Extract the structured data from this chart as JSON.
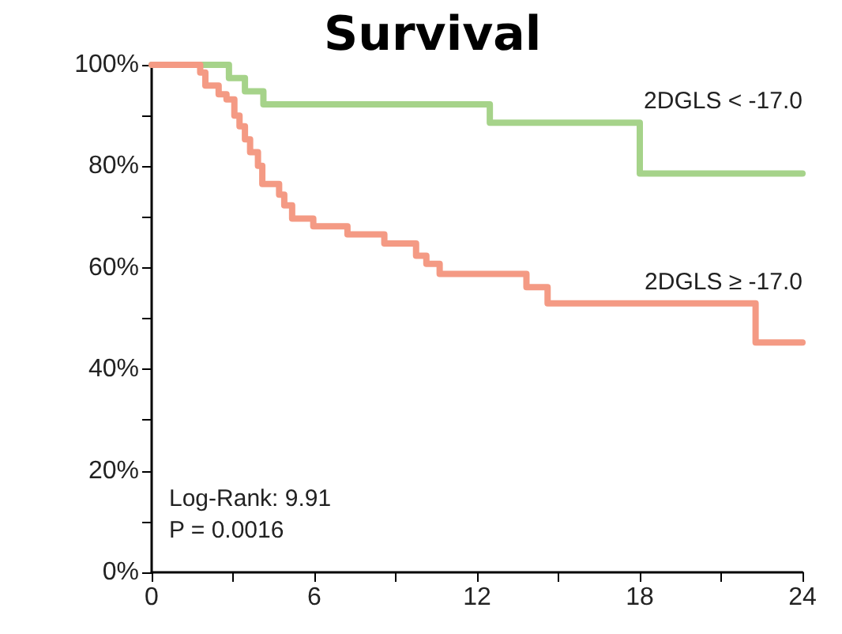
{
  "chart_data": {
    "type": "step",
    "title": "Survival",
    "xlim": [
      0,
      24
    ],
    "xticks": [
      0,
      {
        "value": 3,
        "label": null
      },
      6,
      {
        "value": 9,
        "label": null
      },
      12,
      {
        "value": 15,
        "label": null
      },
      18,
      {
        "value": 21,
        "label": null
      },
      24
    ],
    "ylim": [
      0,
      100
    ],
    "yticks": [
      {
        "value": 0,
        "label": "0%"
      },
      {
        "value": 10,
        "label": null
      },
      {
        "value": 20,
        "label": "20%"
      },
      {
        "value": 30,
        "label": null
      },
      {
        "value": 40,
        "label": "40%"
      },
      {
        "value": 50,
        "label": null
      },
      {
        "value": 60,
        "label": "60%"
      },
      {
        "value": 70,
        "label": null
      },
      {
        "value": 80,
        "label": "80%"
      },
      {
        "value": 90,
        "label": null
      },
      {
        "value": 100,
        "label": "100%"
      }
    ],
    "grid": false,
    "legend": false,
    "marker": "none",
    "line_style": "solid",
    "annotations": [
      "Log-Rank: 9.91",
      "P = 0.0016"
    ],
    "series": [
      {
        "name": "2DGLS < -17.0",
        "color": "#a6d38a",
        "x": [
          0,
          2.85,
          3.44,
          4.12,
          12.47,
          18.0,
          24
        ],
        "values": [
          100,
          97.4,
          94.8,
          92.2,
          88.6,
          78.6,
          78.6
        ]
      },
      {
        "name": "2DGLS ≥ -17.0",
        "color": "#f49a84",
        "x": [
          0,
          1.79,
          1.98,
          2.47,
          2.76,
          3.05,
          3.24,
          3.44,
          3.63,
          3.92,
          4.08,
          4.7,
          4.89,
          5.18,
          5.96,
          7.22,
          8.58,
          9.75,
          10.13,
          10.62,
          13.82,
          14.6,
          22.27,
          24
        ],
        "values": [
          100,
          98.5,
          95.9,
          94.2,
          93.2,
          90,
          87.9,
          85.3,
          82.8,
          80.1,
          76.5,
          74.4,
          72.3,
          69.7,
          68.2,
          66.6,
          64.8,
          62.4,
          60.8,
          58.8,
          56.2,
          53,
          45.3,
          45.3
        ]
      }
    ]
  }
}
